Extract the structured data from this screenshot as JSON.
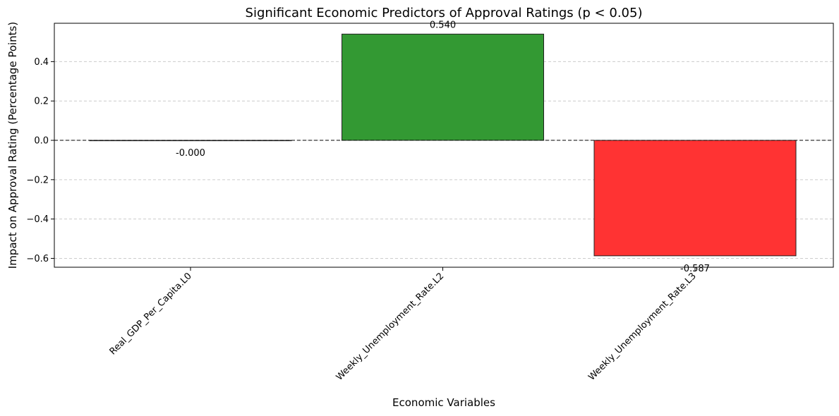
{
  "chart_data": {
    "type": "bar",
    "title": "Significant Economic Predictors of Approval Ratings (p < 0.05)",
    "xlabel": "Economic Variables",
    "ylabel": "Impact on Approval Rating (Percentage Points)",
    "categories": [
      "Real_GDP_Per_Capita.L0",
      "Weekly_Unemployment_Rate.L2",
      "Weekly_Unemployment_Rate.L3"
    ],
    "values": [
      -0.0001,
      0.54,
      -0.587
    ],
    "data_labels": [
      "-0.000",
      "0.540",
      "-0.587"
    ],
    "colors": [
      "#2ca02c",
      "#339933",
      "#ff3333"
    ],
    "edge_color": "#222222",
    "ylim": [
      -0.645,
      0.595
    ],
    "yticks": [
      -0.6,
      -0.4,
      -0.2,
      0.0,
      0.2,
      0.4
    ],
    "ytick_labels": [
      "−0.6",
      "−0.4",
      "−0.2",
      "0.0",
      "0.2",
      "0.4"
    ],
    "grid": "y-dashed",
    "zero_line": true
  }
}
